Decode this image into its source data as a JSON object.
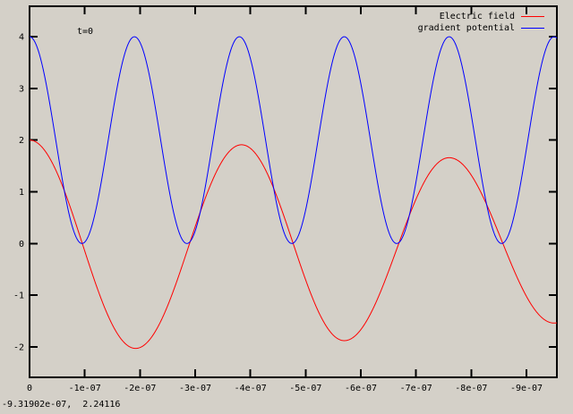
{
  "window": {
    "background_color": "#d4d0c8",
    "border_color": "#000000"
  },
  "plot": {
    "time_label": "t=0",
    "status_readout": "-9.31902e-07,  2.24116"
  },
  "legend": {
    "entries": [
      {
        "label": "Electric field",
        "color": "#ff0000"
      },
      {
        "label": "gradient potential",
        "color": "#0000ff"
      }
    ]
  },
  "chart_data": {
    "type": "line",
    "title": "",
    "xlabel": "",
    "ylabel": "",
    "grid": false,
    "legend_position": "top-right-inside",
    "xlim": [
      0,
      -9.551e-07
    ],
    "ylim": [
      -2.59,
      4.59
    ],
    "x_ticks": [
      {
        "label": "0",
        "value": 0
      },
      {
        "label": "-1e-07",
        "value": -1e-07
      },
      {
        "label": "-2e-07",
        "value": -2e-07
      },
      {
        "label": "-3e-07",
        "value": -3e-07
      },
      {
        "label": "-4e-07",
        "value": -4e-07
      },
      {
        "label": "-5e-07",
        "value": -5e-07
      },
      {
        "label": "-6e-07",
        "value": -6e-07
      },
      {
        "label": "-7e-07",
        "value": -7e-07
      },
      {
        "label": "-8e-07",
        "value": -8e-07
      },
      {
        "label": "-9e-07",
        "value": -9e-07
      }
    ],
    "y_ticks": [
      {
        "label": "-2",
        "value": -2
      },
      {
        "label": "-1",
        "value": -1
      },
      {
        "label": "0",
        "value": 0
      },
      {
        "label": "1",
        "value": 1
      },
      {
        "label": "2",
        "value": 2
      },
      {
        "label": "3",
        "value": 3
      },
      {
        "label": "4",
        "value": 4
      }
    ],
    "series": [
      {
        "name": "Electric field",
        "color": "#ff0000",
        "model": {
          "kind": "cosine_segments",
          "extrema": [
            [
              0,
              2.0
            ],
            [
              -1.92e-07,
              -2.03
            ],
            [
              -3.84e-07,
              1.91
            ],
            [
              -5.7e-07,
              -1.88
            ],
            [
              -7.6e-07,
              1.66
            ],
            [
              -9.5e-07,
              -1.54
            ]
          ]
        }
      },
      {
        "name": "gradient potential",
        "color": "#0000ff",
        "model": {
          "kind": "cos_squared",
          "amplitude": 4,
          "period": 1.9e-07,
          "peaks_at": [
            0,
            -1.9e-07,
            -3.8e-07,
            -5.7e-07,
            -7.6e-07,
            -9.5e-07
          ],
          "zeros_at": [
            -9.5e-08,
            -2.85e-07,
            -4.75e-07,
            -6.65e-07,
            -8.55e-07
          ]
        }
      }
    ]
  }
}
